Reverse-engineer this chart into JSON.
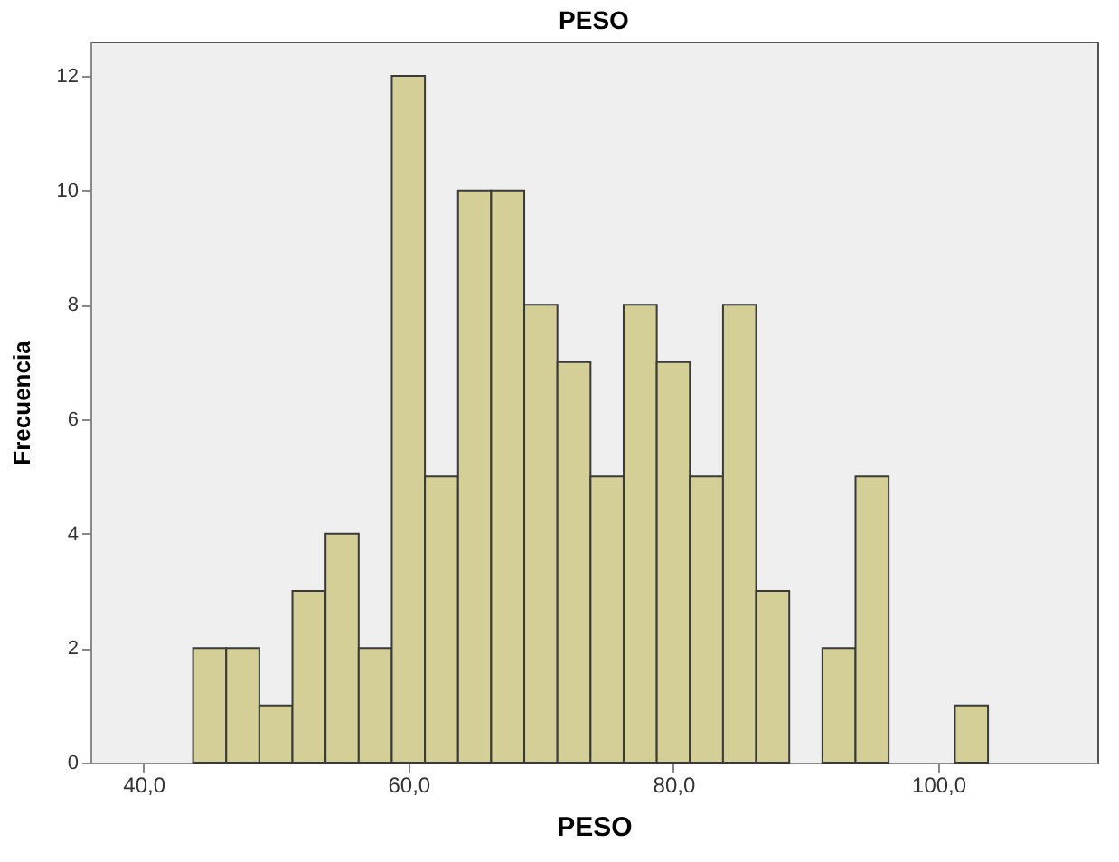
{
  "chart_data": {
    "type": "histogram",
    "title": "PESO",
    "xlabel": "PESO",
    "ylabel": "Frecuencia",
    "bins": [
      43.75,
      46.25,
      48.75,
      51.25,
      53.75,
      56.25,
      58.75,
      61.25,
      63.75,
      66.25,
      68.75,
      71.25,
      73.75,
      76.25,
      78.75,
      81.25,
      83.75,
      86.25,
      88.75,
      91.25,
      93.75,
      96.25,
      98.75,
      101.25,
      103.75
    ],
    "values": [
      2,
      2,
      1,
      3,
      4,
      2,
      12,
      5,
      10,
      10,
      8,
      7,
      5,
      8,
      7,
      5,
      8,
      3,
      0,
      2,
      5,
      0,
      0,
      1
    ],
    "color": "#d3cf97",
    "xlim": [
      36,
      112
    ],
    "xticks": [
      {
        "value": 40,
        "label": "40,0"
      },
      {
        "value": 60,
        "label": "60,0"
      },
      {
        "value": 80,
        "label": "80,0"
      },
      {
        "value": 100,
        "label": "100,0"
      }
    ],
    "ylim": [
      0,
      12.6
    ],
    "yticks": [
      0,
      2,
      4,
      6,
      8,
      10,
      12
    ],
    "grid": false
  }
}
